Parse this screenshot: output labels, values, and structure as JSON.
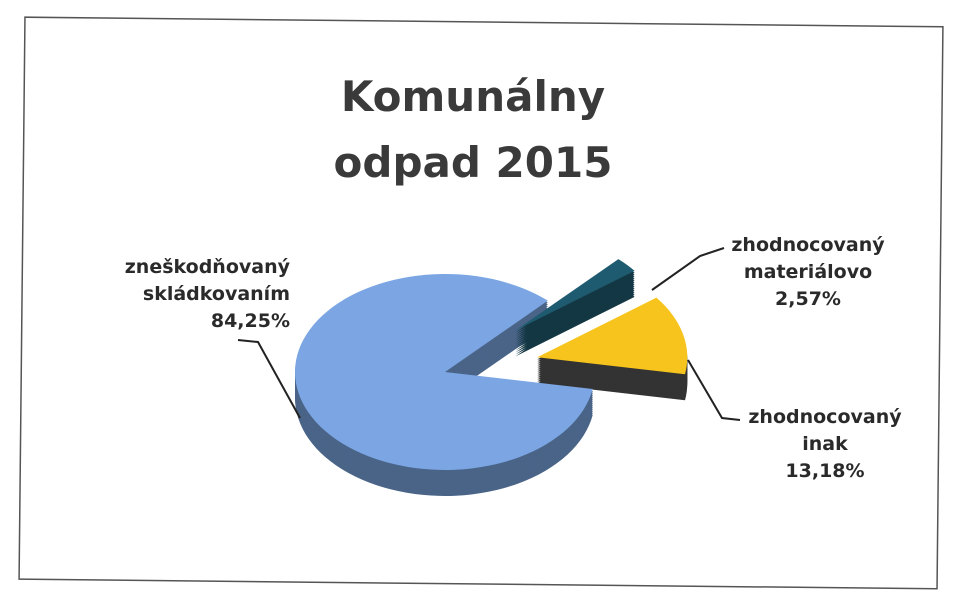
{
  "chart_data": {
    "type": "pie",
    "title": "Komunálny odpad 2015",
    "categories": [
      "zneškodňovaný skládkovaním",
      "zhodnocovaný materiálovo",
      "zhodnocovaný inak"
    ],
    "values": [
      84.25,
      2.57,
      13.18
    ],
    "value_labels": [
      "84,25%",
      "2,57%",
      "13,18%"
    ],
    "colors": [
      "#7ba6e3",
      "#1f5b70",
      "#f6c41c"
    ]
  }
}
